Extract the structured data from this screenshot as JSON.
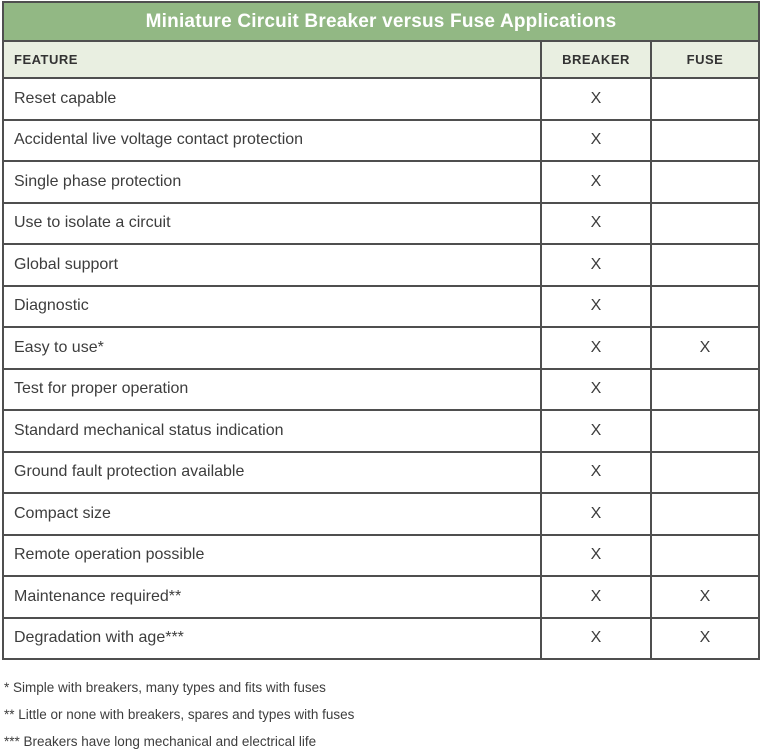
{
  "title": "Miniature Circuit Breaker versus Fuse Applications",
  "columns": {
    "feature": "FEATURE",
    "breaker": "BREAKER",
    "fuse": "FUSE"
  },
  "rows": [
    {
      "feature": "Reset capable",
      "breaker": "X",
      "fuse": ""
    },
    {
      "feature": "Accidental live voltage contact protection",
      "breaker": "X",
      "fuse": ""
    },
    {
      "feature": "Single phase protection",
      "breaker": "X",
      "fuse": ""
    },
    {
      "feature": "Use to isolate a circuit",
      "breaker": "X",
      "fuse": ""
    },
    {
      "feature": "Global support",
      "breaker": "X",
      "fuse": ""
    },
    {
      "feature": "Diagnostic",
      "breaker": "X",
      "fuse": ""
    },
    {
      "feature": "Easy to use*",
      "breaker": "X",
      "fuse": "X"
    },
    {
      "feature": "Test for proper operation",
      "breaker": "X",
      "fuse": ""
    },
    {
      "feature": "Standard mechanical status indication",
      "breaker": "X",
      "fuse": ""
    },
    {
      "feature": "Ground fault protection available",
      "breaker": "X",
      "fuse": ""
    },
    {
      "feature": "Compact size",
      "breaker": "X",
      "fuse": ""
    },
    {
      "feature": "Remote operation possible",
      "breaker": "X",
      "fuse": ""
    },
    {
      "feature": "Maintenance required**",
      "breaker": "X",
      "fuse": "X"
    },
    {
      "feature": "Degradation with age***",
      "breaker": "X",
      "fuse": "X"
    }
  ],
  "footnotes": [
    "* Simple with breakers, many types and fits with fuses",
    "** Little or none with breakers, spares and types with fuses",
    "*** Breakers have long mechanical and electrical life"
  ],
  "colors": {
    "title_bg": "#92b884",
    "title_fg": "#ffffff",
    "header_bg": "#e9efe1",
    "border": "#4f4f4f",
    "text": "#3d3d3d"
  }
}
